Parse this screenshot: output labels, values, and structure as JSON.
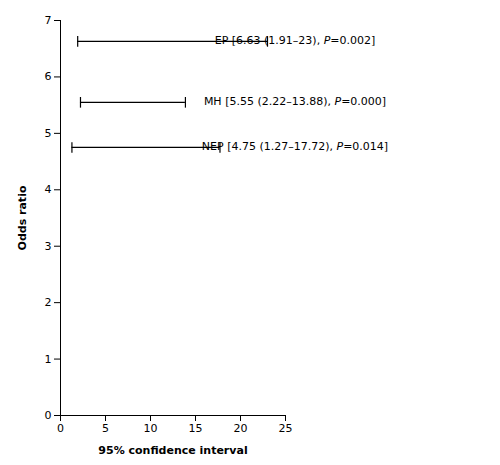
{
  "chart_data": {
    "type": "errorbar",
    "xlabel": "95% confidence interval",
    "ylabel": "Odds ratio",
    "color": "#000000",
    "grid": false,
    "xlim": [
      0,
      25
    ],
    "ylim": [
      0,
      7
    ],
    "xticks": [
      0,
      5,
      10,
      15,
      20,
      25
    ],
    "yticks": [
      0,
      1,
      2,
      3,
      4,
      5,
      6,
      7
    ],
    "series": [
      {
        "y": 6.63,
        "ci_low": 1.91,
        "ci_high": 23.0,
        "label_parts": [
          {
            "text": "EP [6.63 (1.91–23), ",
            "italic": false
          },
          {
            "text": "P",
            "italic": true
          },
          {
            "text": "=0.002]",
            "italic": false
          }
        ]
      },
      {
        "y": 5.55,
        "ci_low": 2.22,
        "ci_high": 13.88,
        "label_parts": [
          {
            "text": "MH [5.55 (2.22–13.88), ",
            "italic": false
          },
          {
            "text": "P",
            "italic": true
          },
          {
            "text": "=0.000]",
            "italic": false
          }
        ]
      },
      {
        "y": 4.75,
        "ci_low": 1.27,
        "ci_high": 17.72,
        "label_parts": [
          {
            "text": "NEP [4.75 (1.27–17.72), ",
            "italic": false
          },
          {
            "text": "P",
            "italic": true
          },
          {
            "text": "=0.014]",
            "italic": false
          }
        ]
      }
    ]
  }
}
